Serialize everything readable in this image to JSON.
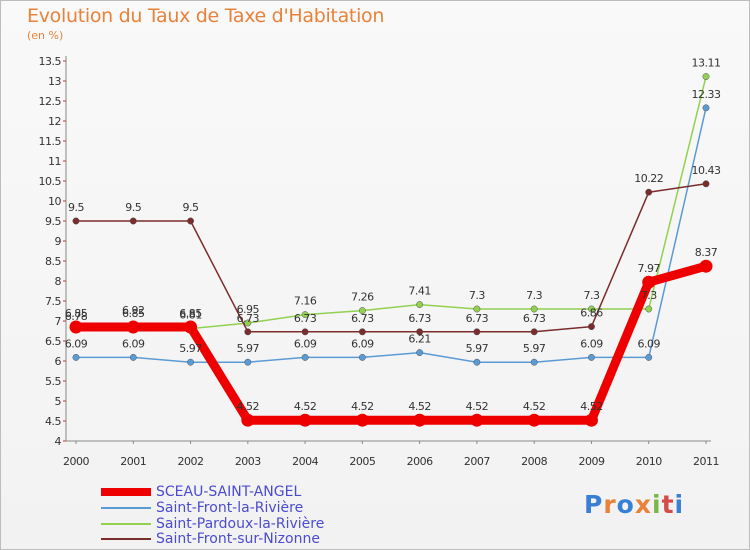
{
  "chart_data": {
    "type": "line",
    "title": "Evolution du Taux de Taxe d'Habitation",
    "unit_label": "(en %)",
    "x": [
      "2000",
      "2001",
      "2002",
      "2003",
      "2004",
      "2005",
      "2006",
      "2007",
      "2008",
      "2009",
      "2010",
      "2011"
    ],
    "ylim": [
      4,
      13.5
    ],
    "ystep": 0.5,
    "grid": false,
    "legend_position": "bottom-left",
    "series": [
      {
        "name": "SCEAU-SAINT-ANGEL",
        "color": "#ee0000",
        "emphasis": true,
        "values": [
          6.85,
          6.85,
          6.85,
          4.52,
          4.52,
          4.52,
          4.52,
          4.52,
          4.52,
          4.52,
          7.97,
          8.37
        ],
        "labels": [
          "6.85",
          "6.85",
          "6.85",
          "4.52",
          "4.52",
          "4.52",
          "4.52",
          "4.52",
          "4.52",
          "4.52",
          "7.97",
          "8.37"
        ]
      },
      {
        "name": "Saint-Front-la-Rivière",
        "color": "#5b9bd5",
        "emphasis": false,
        "values": [
          6.09,
          6.09,
          5.97,
          5.97,
          6.09,
          6.09,
          6.21,
          5.97,
          5.97,
          6.09,
          6.09,
          12.33
        ],
        "labels": [
          "6.09",
          "6.09",
          "5.97",
          "5.97",
          "6.09",
          "6.09",
          "6.21",
          "5.97",
          "5.97",
          "6.09",
          "6.09",
          "12.33"
        ]
      },
      {
        "name": "Saint-Pardoux-la-Rivière",
        "color": "#92d050",
        "emphasis": false,
        "values": [
          6.78,
          6.92,
          6.81,
          6.95,
          7.16,
          7.26,
          7.41,
          7.3,
          7.3,
          7.3,
          7.3,
          13.11
        ],
        "labels": [
          "6.78",
          "6.92",
          "6.81",
          "6.95",
          "7.16",
          "7.26",
          "7.41",
          "7.3",
          "7.3",
          "7.3",
          "7.3",
          "13.11"
        ]
      },
      {
        "name": "Saint-Front-sur-Nizonne",
        "color": "#7b2c2c",
        "emphasis": false,
        "values": [
          9.5,
          9.5,
          9.5,
          6.73,
          6.73,
          6.73,
          6.73,
          6.73,
          6.73,
          6.86,
          10.22,
          10.43
        ],
        "labels": [
          "9.5",
          "9.5",
          "9.5",
          "6.73",
          "6.73",
          "6.73",
          "6.73",
          "6.73",
          "6.73",
          "6.86",
          "10.22",
          "10.43"
        ]
      }
    ]
  },
  "logo": {
    "text": "Proxiti",
    "colors": [
      "#3a7fd6",
      "#e8823a",
      "#3a7fd6",
      "#e8823a",
      "#7ab648",
      "#d64a4a",
      "#3a7fd6"
    ]
  }
}
